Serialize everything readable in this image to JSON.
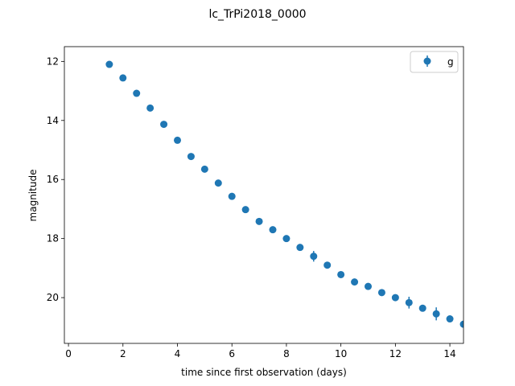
{
  "chart_data": {
    "type": "scatter",
    "title": "lc_TrPi2018_0000",
    "xlabel": "time since first observation (days)",
    "ylabel": "magnitude",
    "xlim": [
      -0.15,
      14.5
    ],
    "ylim": [
      21.55,
      11.5
    ],
    "y_inverted": true,
    "grid": false,
    "legend": "top-right",
    "x_ticks": [
      0,
      2,
      4,
      6,
      8,
      10,
      12,
      14
    ],
    "y_ticks": [
      12,
      14,
      16,
      18,
      20
    ],
    "series": [
      {
        "name": "g",
        "color": "#1f77b4",
        "points": [
          {
            "x": 1.5,
            "y": 12.1,
            "err": 0.05
          },
          {
            "x": 2.0,
            "y": 12.56,
            "err": 0.05
          },
          {
            "x": 2.5,
            "y": 13.08,
            "err": 0.05
          },
          {
            "x": 3.0,
            "y": 13.58,
            "err": 0.05
          },
          {
            "x": 3.5,
            "y": 14.13,
            "err": 0.05
          },
          {
            "x": 4.0,
            "y": 14.67,
            "err": 0.05
          },
          {
            "x": 4.5,
            "y": 15.22,
            "err": 0.05
          },
          {
            "x": 5.0,
            "y": 15.65,
            "err": 0.05
          },
          {
            "x": 5.5,
            "y": 16.12,
            "err": 0.05
          },
          {
            "x": 6.0,
            "y": 16.57,
            "err": 0.05
          },
          {
            "x": 6.5,
            "y": 17.02,
            "err": 0.05
          },
          {
            "x": 7.0,
            "y": 17.42,
            "err": 0.05
          },
          {
            "x": 7.5,
            "y": 17.7,
            "err": 0.05
          },
          {
            "x": 8.0,
            "y": 18.0,
            "err": 0.05
          },
          {
            "x": 8.5,
            "y": 18.3,
            "err": 0.07
          },
          {
            "x": 9.0,
            "y": 18.6,
            "err": 0.18
          },
          {
            "x": 9.5,
            "y": 18.9,
            "err": 0.1
          },
          {
            "x": 10.0,
            "y": 19.22,
            "err": 0.05
          },
          {
            "x": 10.5,
            "y": 19.47,
            "err": 0.05
          },
          {
            "x": 11.0,
            "y": 19.62,
            "err": 0.05
          },
          {
            "x": 11.5,
            "y": 19.83,
            "err": 0.05
          },
          {
            "x": 12.0,
            "y": 20.0,
            "err": 0.05
          },
          {
            "x": 12.5,
            "y": 20.17,
            "err": 0.2
          },
          {
            "x": 13.0,
            "y": 20.36,
            "err": 0.1
          },
          {
            "x": 13.5,
            "y": 20.55,
            "err": 0.22
          },
          {
            "x": 14.0,
            "y": 20.72,
            "err": 0.07
          },
          {
            "x": 14.5,
            "y": 20.9,
            "err": 0.05
          }
        ]
      }
    ]
  }
}
